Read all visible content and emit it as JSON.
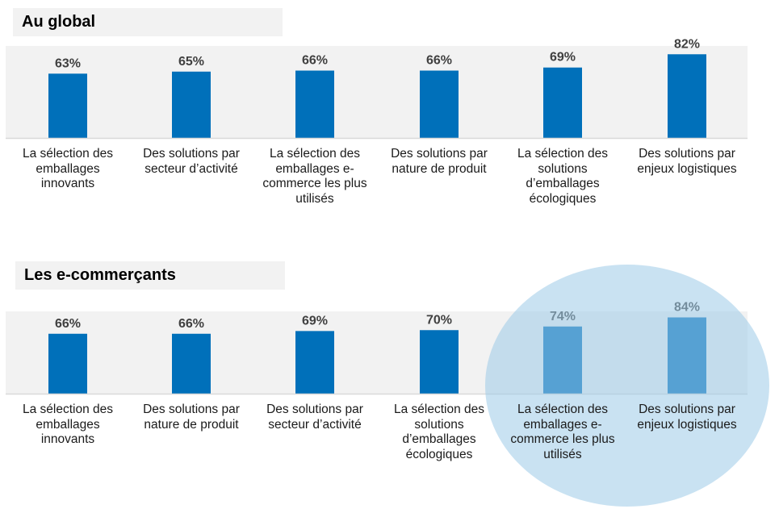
{
  "chart_data": [
    {
      "type": "bar",
      "title": "Au global",
      "categories": [
        "La sélection des emballages innovants",
        "Des solutions par secteur d’activité",
        "La sélection des emballages e-commerce les plus utilisés",
        "Des solutions par nature de produit",
        "La sélection des solutions d’emballages écologiques",
        "Des solutions par enjeux logistiques"
      ],
      "category_lines": [
        [
          "La sélection des",
          "emballages",
          "innovants"
        ],
        [
          "Des solutions par",
          "secteur d’activité"
        ],
        [
          "La sélection des",
          "emballages e-",
          "commerce les plus",
          "utilisés"
        ],
        [
          "Des solutions par",
          "nature de produit"
        ],
        [
          "La sélection des",
          "solutions",
          "d’emballages",
          "écologiques"
        ],
        [
          "Des solutions par",
          "enjeux logistiques"
        ]
      ],
      "values": [
        63,
        65,
        66,
        66,
        69,
        82
      ],
      "data_labels": [
        "63%",
        "65%",
        "66%",
        "66%",
        "69%",
        "82%"
      ],
      "xlabel": "",
      "ylabel": "",
      "unit": "%",
      "grid": false,
      "legend": "none",
      "bar_color": "#0070BA",
      "plot_background": "#F2F2F2"
    },
    {
      "type": "bar",
      "title": "Les e-commerçants",
      "categories": [
        "La sélection des emballages innovants",
        "Des solutions par nature de produit",
        "Des solutions par secteur d’activité",
        "La sélection des solutions d’emballages écologiques",
        "La sélection des emballages e-commerce les plus utilisés",
        "Des solutions par enjeux logistiques"
      ],
      "category_lines": [
        [
          "La sélection des",
          "emballages",
          "innovants"
        ],
        [
          "Des solutions par",
          "nature de produit"
        ],
        [
          "Des solutions par",
          "secteur d’activité"
        ],
        [
          "La sélection des",
          "solutions",
          "d’emballages",
          "écologiques"
        ],
        [
          "La sélection des",
          "emballages e-",
          "commerce les plus",
          "utilisés"
        ],
        [
          "Des solutions par",
          "enjeux logistiques"
        ]
      ],
      "values": [
        66,
        66,
        69,
        70,
        74,
        84
      ],
      "data_labels": [
        "66%",
        "66%",
        "69%",
        "70%",
        "74%",
        "84%"
      ],
      "xlabel": "",
      "ylabel": "",
      "unit": "%",
      "grid": false,
      "legend": "none",
      "bar_color": "#0070BA",
      "plot_background": "#F2F2F2",
      "annotation": "highlight ellipse around the last two categories (74%, 84%)",
      "highlight_color": "#9DCAE8"
    }
  ]
}
